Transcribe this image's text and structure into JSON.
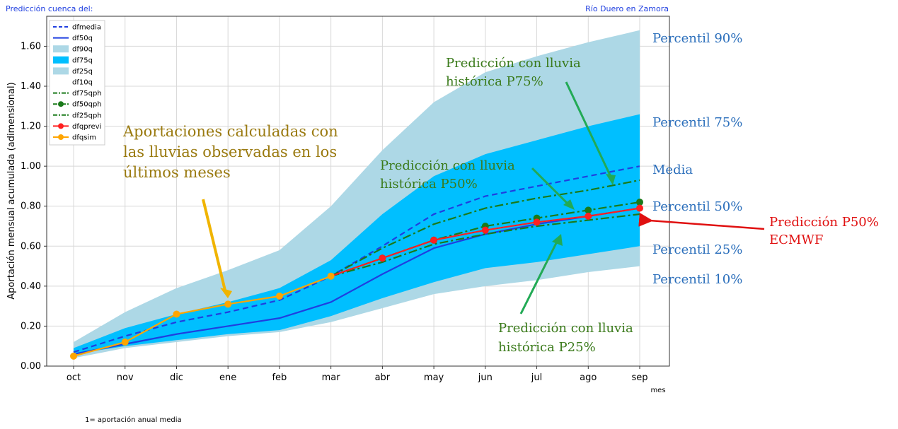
{
  "header": {
    "left": "Predicción cuenca del:",
    "right": "Río Duero en Zamora"
  },
  "footnote": "1= aportación anual media",
  "colors": {
    "band_outer": "#add8e6",
    "band_inner": "#00bfff",
    "mean": "#1f3fe0",
    "median": "#1f3fe0",
    "green": "#1a7a1a",
    "red": "#ff2020",
    "orange": "#ffa500",
    "ann_blue": "#2a6ebb",
    "ann_green": "#3a7a1a",
    "ann_gold": "#9a7a10",
    "ann_red": "#e01010",
    "arrow_green": "#22aa55",
    "arrow_gold": "#f0b400"
  },
  "chart_data": {
    "type": "line",
    "ylabel": "Aportación mensual acumulada (adimensional)",
    "xlabel": "mes",
    "ylim": [
      0,
      1.75
    ],
    "yticks": [
      "0.00",
      "0.20",
      "0.40",
      "0.60",
      "0.80",
      "1.00",
      "1.20",
      "1.40",
      "1.60"
    ],
    "categories": [
      "oct",
      "nov",
      "dic",
      "ene",
      "feb",
      "mar",
      "abr",
      "may",
      "jun",
      "jul",
      "ago",
      "sep"
    ],
    "grid": true,
    "legend_position": "top-left",
    "bands": [
      {
        "name": "df90q",
        "lower": [
          0.04,
          0.09,
          0.12,
          0.15,
          0.17,
          0.22,
          0.29,
          0.36,
          0.4,
          0.43,
          0.47,
          0.5
        ],
        "upper": [
          0.12,
          0.27,
          0.39,
          0.48,
          0.58,
          0.8,
          1.08,
          1.32,
          1.47,
          1.55,
          1.62,
          1.68
        ]
      },
      {
        "name": "df75q",
        "lower": [
          0.06,
          0.1,
          0.13,
          0.16,
          0.18,
          0.25,
          0.34,
          0.42,
          0.49,
          0.52,
          0.56,
          0.6
        ],
        "upper": [
          0.09,
          0.19,
          0.26,
          0.32,
          0.39,
          0.53,
          0.76,
          0.95,
          1.06,
          1.13,
          1.2,
          1.26
        ]
      }
    ],
    "series": [
      {
        "name": "dfmedia",
        "values": [
          0.07,
          0.15,
          0.22,
          0.27,
          0.33,
          0.45,
          0.6,
          0.76,
          0.85,
          0.9,
          0.95,
          1.0
        ]
      },
      {
        "name": "df50q",
        "values": [
          0.06,
          0.11,
          0.16,
          0.2,
          0.24,
          0.32,
          0.46,
          0.59,
          0.66,
          0.71,
          0.75,
          0.79
        ]
      },
      {
        "name": "df75qph",
        "values": [
          null,
          null,
          null,
          null,
          null,
          0.45,
          0.59,
          0.71,
          0.79,
          0.84,
          0.88,
          0.93
        ]
      },
      {
        "name": "df50qph",
        "values": [
          null,
          null,
          null,
          null,
          null,
          0.45,
          0.54,
          0.63,
          0.7,
          0.74,
          0.78,
          0.82
        ]
      },
      {
        "name": "df25qph",
        "values": [
          null,
          null,
          null,
          null,
          null,
          0.45,
          0.52,
          0.61,
          0.66,
          0.7,
          0.73,
          0.76
        ]
      },
      {
        "name": "dfqprevi",
        "values": [
          null,
          null,
          null,
          null,
          null,
          0.45,
          0.54,
          0.63,
          0.68,
          0.72,
          0.75,
          0.79
        ]
      },
      {
        "name": "dfqsim",
        "values": [
          0.05,
          0.12,
          0.26,
          0.31,
          0.35,
          0.45,
          null,
          null,
          null,
          null,
          null,
          null
        ]
      }
    ],
    "legend": [
      "dfmedia",
      "df50q",
      "df90q",
      "df75q",
      "df25q",
      "df10q",
      "df75qph",
      "df50qph",
      "df25qph",
      "dfqprevi",
      "dfqsim"
    ],
    "annotations": {
      "p90": "Percentil 90%",
      "p75": "Percentil 75%",
      "media": "Media",
      "p50": "Percentil 50%",
      "p25": "Percentil 25%",
      "p10": "Percentil 10%",
      "pred75_l1": "Predicción con lluvia",
      "pred75_l2": "histórica P75%",
      "pred50_l1": "Predicción con lluvia",
      "pred50_l2": "histórica P50%",
      "pred25_l1": "Predicción con lluvia",
      "pred25_l2": "histórica P25%",
      "obs_l1": "Aportaciones calculadas con",
      "obs_l2": "las lluvias observadas en los",
      "obs_l3": "últimos meses",
      "ecmwf_l1": "Predicción P50%",
      "ecmwf_l2": "ECMWF"
    }
  }
}
